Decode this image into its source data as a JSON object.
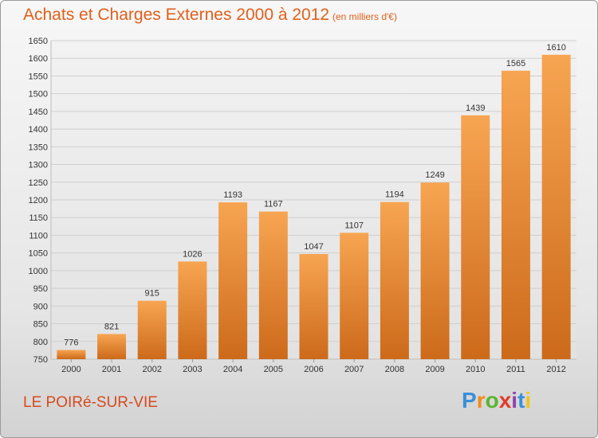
{
  "header": {
    "title": "Achats et Charges Externes 2000 à 2012",
    "subtitle": "(en milliers d'€)"
  },
  "footer": {
    "commune": "LE POIRé-SUR-VIE",
    "logo_text": "Proxiti",
    "logo_letters": [
      "P",
      "r",
      "o",
      "x",
      "i",
      "t",
      "i"
    ],
    "logo_colors": [
      "#3a8fd8",
      "#f28c1c",
      "#5bb531",
      "#e23b2b",
      "#8e44ad",
      "#3a8fd8",
      "#f0c419"
    ]
  },
  "colors": {
    "bar_top": "#f7a552",
    "bar_bottom": "#cc6a1a",
    "accent": "#e0601c"
  },
  "chart_data": {
    "type": "bar",
    "title": "Achats et Charges Externes 2000 à 2012",
    "subtitle": "(en milliers d'€)",
    "categories": [
      "2000",
      "2001",
      "2002",
      "2003",
      "2004",
      "2005",
      "2006",
      "2007",
      "2008",
      "2009",
      "2010",
      "2011",
      "2012"
    ],
    "values": [
      776,
      821,
      915,
      1026,
      1193,
      1167,
      1047,
      1107,
      1194,
      1249,
      1439,
      1565,
      1610
    ],
    "xlabel": "",
    "ylabel": "",
    "ylim": [
      750,
      1650
    ],
    "yticks": [
      750,
      800,
      850,
      900,
      950,
      1000,
      1050,
      1100,
      1150,
      1200,
      1250,
      1300,
      1350,
      1400,
      1450,
      1500,
      1550,
      1600,
      1650
    ],
    "grid": true,
    "legend": "none"
  }
}
